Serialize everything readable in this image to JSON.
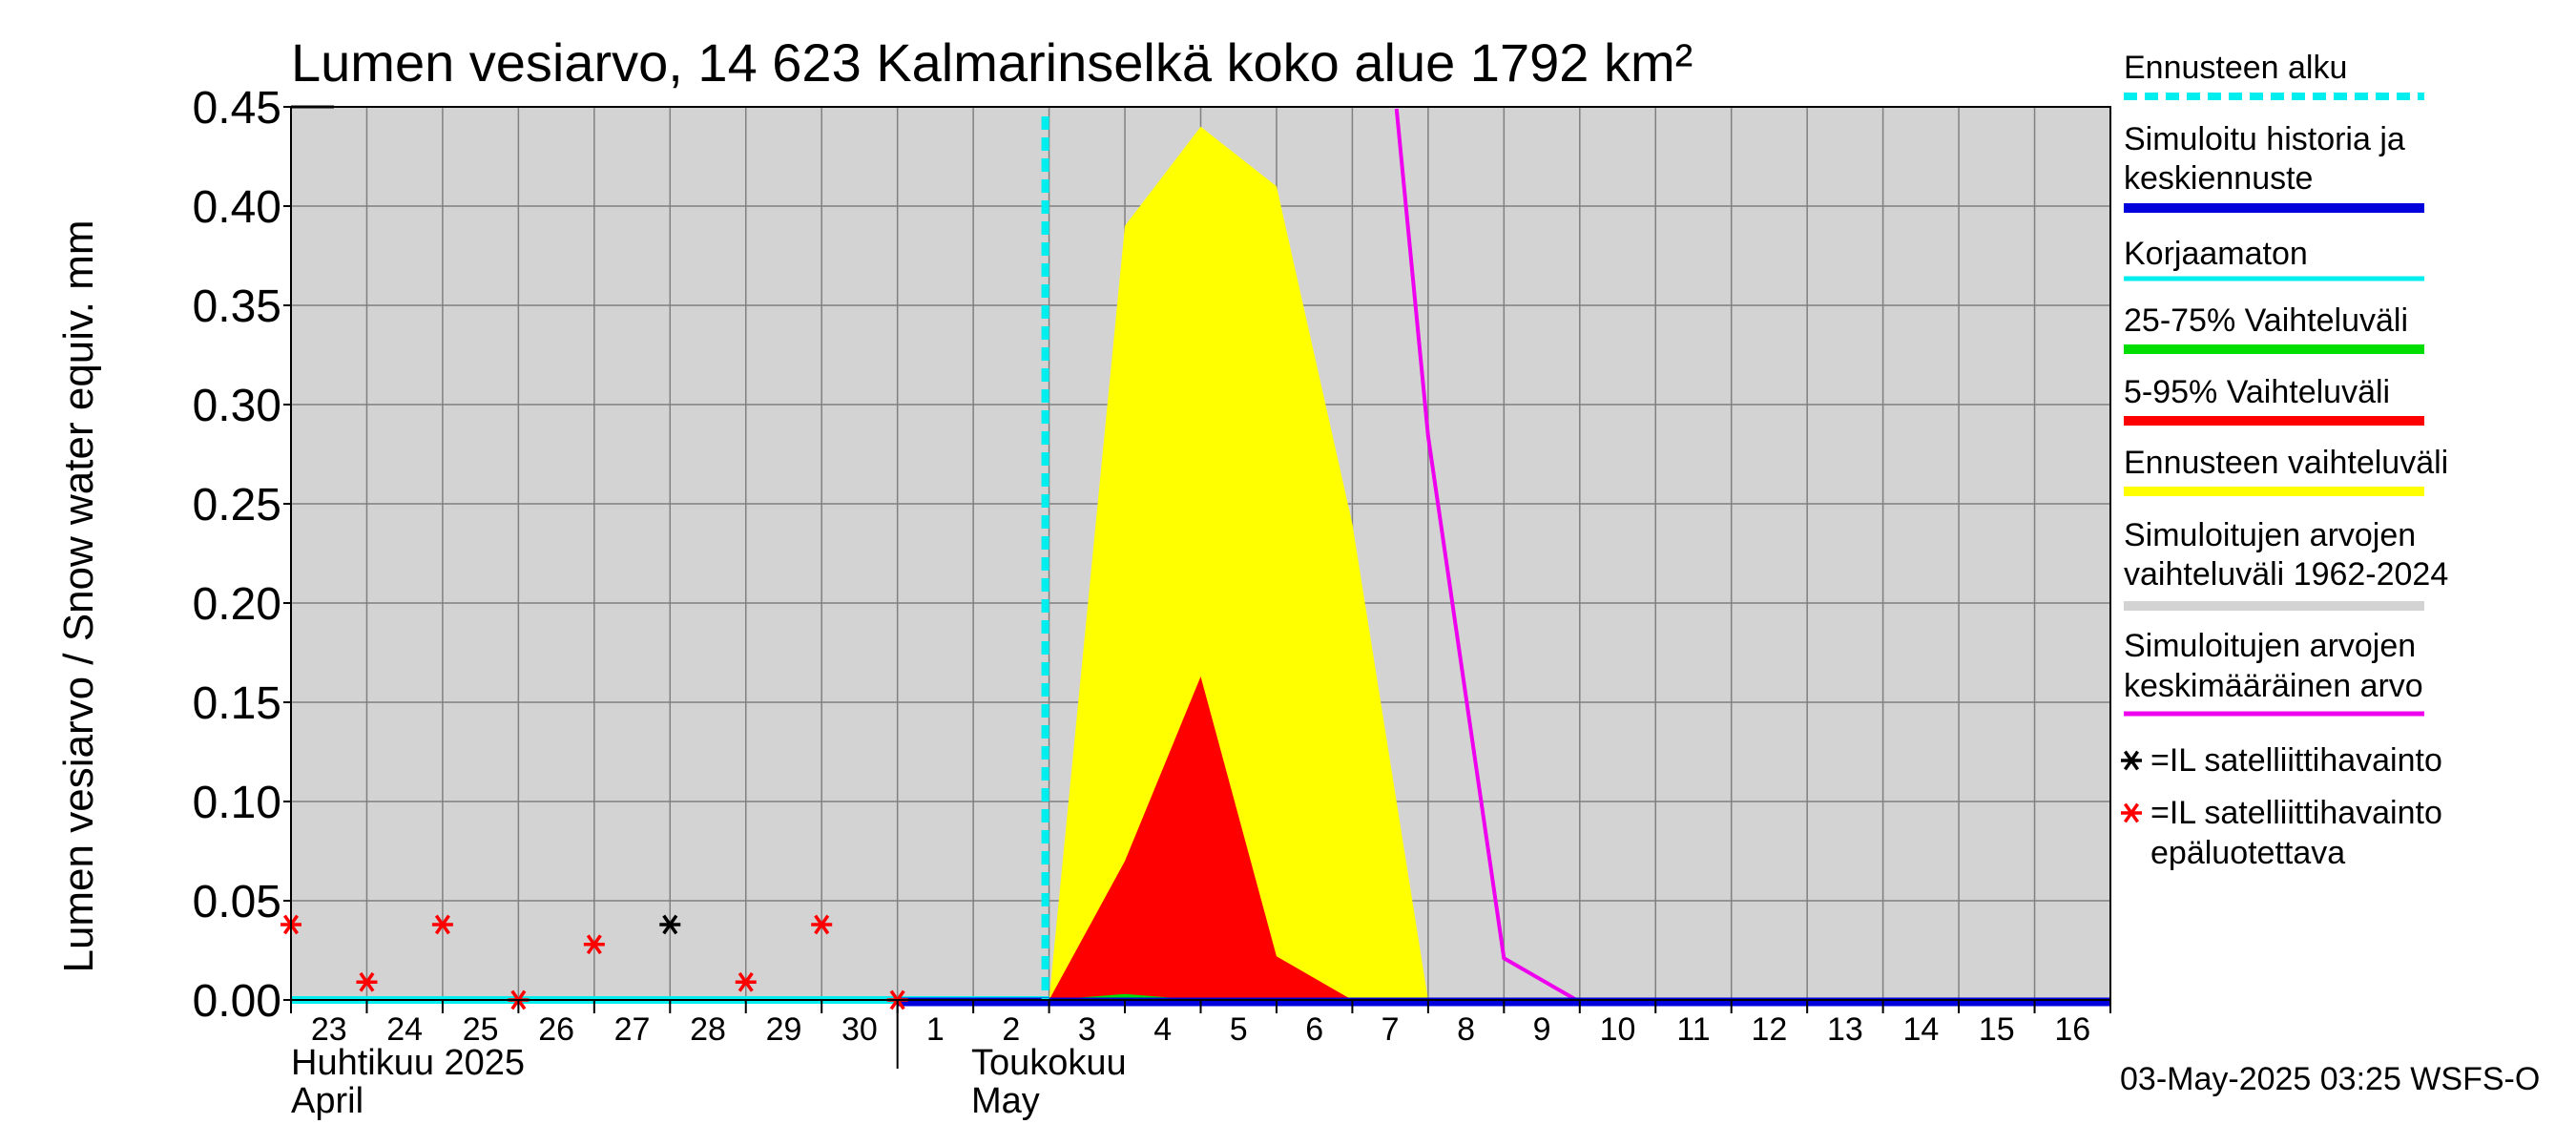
{
  "chart_data": {
    "type": "area",
    "title": "Lumen vesiarvo, 14 623 Kalmarinselkä koko alue 1792 km²",
    "ylabel": "Lumen vesiarvo / Snow water equiv.    mm",
    "ylim": [
      0,
      0.45
    ],
    "yticks": [
      "0.00",
      "0.05",
      "0.10",
      "0.15",
      "0.20",
      "0.25",
      "0.30",
      "0.35",
      "0.40",
      "0.45"
    ],
    "xlim": [
      "2025-04-23",
      "2025-05-16"
    ],
    "x_tick_labels": [
      "23",
      "24",
      "25",
      "26",
      "27",
      "28",
      "29",
      "30",
      "1",
      "2",
      "3",
      "4",
      "5",
      "6",
      "7",
      "8",
      "9",
      "10",
      "11",
      "12",
      "13",
      "14",
      "15",
      "16"
    ],
    "month_labels": [
      {
        "fi": "Huhtikuu  2025",
        "en": "April"
      },
      {
        "fi": "Toukokuu",
        "en": "May"
      }
    ],
    "forecast_start": "2025-05-03",
    "grid": true,
    "legend_position": "right",
    "series": [
      {
        "name": "Simuloitujen arvojen vaihteluväli 1962-2024",
        "color": "#d3d3d3",
        "kind": "background-band",
        "lower": 0,
        "upper": 0.45
      },
      {
        "name": "Ennusteen vaihteluväli",
        "color": "#ffff00",
        "kind": "band",
        "x": [
          "2025-05-03",
          "2025-05-04",
          "2025-05-05",
          "2025-05-06",
          "2025-05-07",
          "2025-05-08"
        ],
        "lower": [
          0,
          0,
          0,
          0,
          0,
          0
        ],
        "upper": [
          0.0,
          0.39,
          0.44,
          0.41,
          0.24,
          0.0
        ]
      },
      {
        "name": "5-95% Vaihteluväli",
        "color": "#ff0000",
        "kind": "band",
        "x": [
          "2025-05-03",
          "2025-05-04",
          "2025-05-05",
          "2025-05-06",
          "2025-05-07"
        ],
        "lower": [
          0,
          0,
          0,
          0,
          0
        ],
        "upper": [
          0.0,
          0.07,
          0.163,
          0.022,
          0.0
        ]
      },
      {
        "name": "25-75% Vaihteluväli",
        "color": "#00dd00",
        "kind": "band",
        "x": [
          "2025-05-03",
          "2025-05-04",
          "2025-05-05"
        ],
        "lower": [
          0,
          0,
          0
        ],
        "upper": [
          0.0,
          0.003,
          0.0
        ]
      },
      {
        "name": "Simuloitujen arvojen keskimääräinen arvo",
        "color": "#ee00ee",
        "kind": "line",
        "x": [
          "2025-05-07T14:00",
          "2025-05-08",
          "2025-05-09",
          "2025-05-10",
          "2025-05-16T23:59"
        ],
        "y": [
          0.45,
          0.285,
          0.022,
          0.0,
          0.0
        ]
      },
      {
        "name": "Korjaamaton",
        "color": "#00eeee",
        "kind": "line",
        "x": [
          "2025-04-23",
          "2025-05-03"
        ],
        "y": [
          0.0,
          0.0
        ]
      },
      {
        "name": "Simuloitu historia ja keskiennuste",
        "color": "#0000dd",
        "kind": "line",
        "x": [
          "2025-05-01",
          "2025-05-16T23:59"
        ],
        "y": [
          0.0,
          0.0
        ]
      },
      {
        "name": "=IL satelliittihavainto",
        "color": "#000000",
        "kind": "markers",
        "x": [
          "2025-04-28"
        ],
        "y": [
          0.038
        ]
      },
      {
        "name": "=IL satelliittihavainto epäluotettava",
        "color": "#ff0000",
        "kind": "markers",
        "x": [
          "2025-04-23",
          "2025-04-24",
          "2025-04-25",
          "2025-04-26",
          "2025-04-27",
          "2025-04-29",
          "2025-04-30",
          "2025-05-01"
        ],
        "y": [
          0.038,
          0.009,
          0.038,
          0.0,
          0.028,
          0.009,
          0.038,
          0.0
        ]
      }
    ]
  },
  "legend": {
    "items": [
      {
        "text": "Ennusteen alku",
        "color": "#00eeee",
        "style": "dashed"
      },
      {
        "text": "Simuloitu historia ja\nkeskiennuste",
        "color": "#0000dd",
        "style": "thick"
      },
      {
        "text": "Korjaamaton",
        "color": "#00eeee",
        "style": "solid"
      },
      {
        "text": "25-75% Vaihteluväli",
        "color": "#00dd00",
        "style": "thick"
      },
      {
        "text": "5-95% Vaihteluväli",
        "color": "#ff0000",
        "style": "thick"
      },
      {
        "text": "Ennusteen vaihteluväli",
        "color": "#ffff00",
        "style": "thick"
      },
      {
        "text": "Simuloitujen arvojen\nvaihteluväli 1962-2024",
        "color": "#d3d3d3",
        "style": "thick"
      },
      {
        "text": "Simuloitujen arvojen\nkeskimääräinen arvo",
        "color": "#ee00ee",
        "style": "solid"
      },
      {
        "text": "=IL satelliittihavainto",
        "color": "#000000",
        "style": "marker"
      },
      {
        "text": "=IL satelliittihavainto\nepäluotettava",
        "color": "#ff0000",
        "style": "marker"
      }
    ]
  },
  "footer": {
    "timestamp": "03-May-2025 03:25 WSFS-O"
  }
}
